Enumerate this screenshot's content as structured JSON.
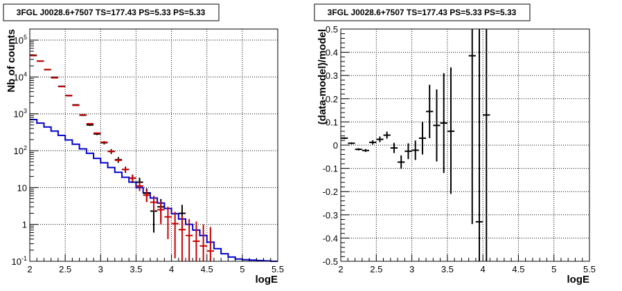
{
  "chart_data": [
    {
      "type": "line",
      "title": "3FGL J0028.6+7507 TS=177.43 PS=5.33 PS=5.33",
      "xlabel": "logE",
      "ylabel": "Nb of counts",
      "xlim": [
        2,
        5.5
      ],
      "ylim": [
        0.1,
        200000
      ],
      "yscale": "log",
      "grid": true,
      "x_ticks": [
        "2",
        "2.5",
        "3",
        "3.5",
        "4",
        "4.5",
        "5",
        "5.5"
      ],
      "y_ticks": [
        "10^-1",
        "1",
        "10",
        "10^2",
        "10^3",
        "10^4",
        "10^5"
      ],
      "series": [
        {
          "color": "#0000cc",
          "style": "step",
          "bin_width": 0.1,
          "x": [
            2.05,
            2.15,
            2.25,
            2.35,
            2.45,
            2.55,
            2.65,
            2.75,
            2.85,
            2.95,
            3.05,
            3.15,
            3.25,
            3.35,
            3.45,
            3.55,
            3.65,
            3.75,
            3.85,
            3.95,
            4.05,
            4.15,
            4.25,
            4.35,
            4.45,
            4.55,
            4.65,
            4.75,
            4.85,
            4.95,
            5.05,
            5.15,
            5.25,
            5.35,
            5.45
          ],
          "y": [
            700,
            560,
            440,
            340,
            260,
            195,
            150,
            112,
            85,
            62,
            47,
            35,
            26,
            19,
            14,
            10,
            7.2,
            5.2,
            3.8,
            2.7,
            1.95,
            1.4,
            1.0,
            0.7,
            0.5,
            0.33,
            0.22,
            0.16,
            0.13,
            0.115,
            0.11,
            0.108,
            0.105,
            0.103,
            0.1
          ]
        },
        {
          "color": "#cc0000",
          "style": "errorbar",
          "x": [
            2.05,
            2.15,
            2.25,
            2.35,
            2.45,
            2.55,
            2.65,
            2.75,
            2.85,
            2.95,
            3.05,
            3.15,
            3.25,
            3.35,
            3.45,
            3.55,
            3.65,
            3.75,
            3.85,
            3.95,
            4.05,
            4.15,
            4.25,
            4.35,
            4.45,
            4.55
          ],
          "y": [
            38000,
            27000,
            16000,
            9500,
            5500,
            3100,
            1700,
            940,
            540,
            300,
            170,
            95,
            55,
            31,
            18,
            11,
            6.2,
            4.0,
            2.5,
            1.6,
            1.05,
            0.72,
            0.5,
            0.35,
            0.26,
            0.19
          ],
          "ylo": [
            37500,
            26700,
            15800,
            9350,
            5400,
            3050,
            1660,
            910,
            520,
            285,
            160,
            88,
            50,
            26,
            14.5,
            8,
            4.0,
            2.2,
            1.0,
            0.4,
            0.12,
            0.1,
            0.1,
            0.1,
            0.1,
            0.1
          ],
          "yhi": [
            38500,
            27300,
            16200,
            9650,
            5600,
            3150,
            1740,
            970,
            560,
            315,
            180,
            102,
            60,
            36,
            22,
            14,
            8.5,
            6.0,
            4.2,
            3.0,
            2.2,
            1.7,
            1.4,
            1.2,
            1.0,
            0.85
          ]
        },
        {
          "color": "#000000",
          "style": "errorbar",
          "x": [
            2.05,
            2.15,
            2.25,
            2.35,
            2.45,
            2.55,
            2.65,
            2.75,
            2.85,
            2.95,
            3.05,
            3.15,
            3.25,
            3.35,
            3.45,
            3.55,
            3.65,
            3.75,
            3.85,
            4.15
          ],
          "y": [
            39000,
            27000,
            15800,
            9800,
            5600,
            3150,
            1750,
            920,
            500,
            285,
            165,
            96,
            57,
            31,
            18,
            14,
            7.0,
            2.3,
            3.0,
            2.0
          ],
          "ylo": [
            38700,
            26800,
            15600,
            9650,
            5500,
            3080,
            1700,
            880,
            470,
            265,
            148,
            82,
            47,
            25,
            13.5,
            9.5,
            4.3,
            0.6,
            1.2,
            0.7
          ],
          "yhi": [
            39300,
            27200,
            16000,
            9950,
            5700,
            3220,
            1800,
            960,
            530,
            305,
            182,
            110,
            67,
            37,
            22.5,
            18.5,
            9.5,
            4.0,
            4.9,
            3.4
          ]
        }
      ]
    },
    {
      "type": "scatter",
      "title": "3FGL J0028.6+7507 TS=177.43 PS=5.33 PS=5.33",
      "xlabel": "logE",
      "ylabel": "(data-model)/model",
      "xlim": [
        2,
        5.5
      ],
      "ylim": [
        -0.5,
        0.5
      ],
      "grid": true,
      "x_ticks": [
        "2",
        "2.5",
        "3",
        "3.5",
        "4",
        "4.5",
        "5",
        "5.5"
      ],
      "y_ticks": [
        "-0.5",
        "-0.4",
        "-0.3",
        "-0.2",
        "-0.1",
        "0",
        "0.1",
        "0.2",
        "0.3",
        "0.4",
        "0.5"
      ],
      "series": [
        {
          "color": "#000000",
          "style": "errorbar",
          "bin_width": 0.1,
          "x": [
            2.05,
            2.15,
            2.25,
            2.35,
            2.45,
            2.55,
            2.65,
            2.75,
            2.85,
            2.95,
            3.05,
            3.15,
            3.25,
            3.35,
            3.45,
            3.55,
            3.85,
            3.95,
            4.05
          ],
          "y": [
            0.03,
            0.008,
            -0.018,
            -0.023,
            0.012,
            0.025,
            0.043,
            -0.012,
            -0.073,
            -0.026,
            -0.022,
            0.03,
            0.145,
            0.085,
            0.095,
            0.06,
            0.385,
            -0.33,
            0.13
          ],
          "ylo": [
            0.026,
            0.004,
            -0.023,
            -0.029,
            0.003,
            0.013,
            0.028,
            -0.034,
            -0.102,
            -0.06,
            -0.064,
            -0.04,
            0.03,
            -0.07,
            -0.12,
            -0.21,
            -0.34,
            -0.5,
            -0.5
          ],
          "yhi": [
            0.034,
            0.012,
            -0.013,
            -0.017,
            0.021,
            0.037,
            0.058,
            0.01,
            -0.044,
            0.008,
            0.02,
            0.1,
            0.26,
            0.24,
            0.31,
            0.335,
            0.5,
            0.5,
            0.5
          ]
        }
      ]
    }
  ]
}
